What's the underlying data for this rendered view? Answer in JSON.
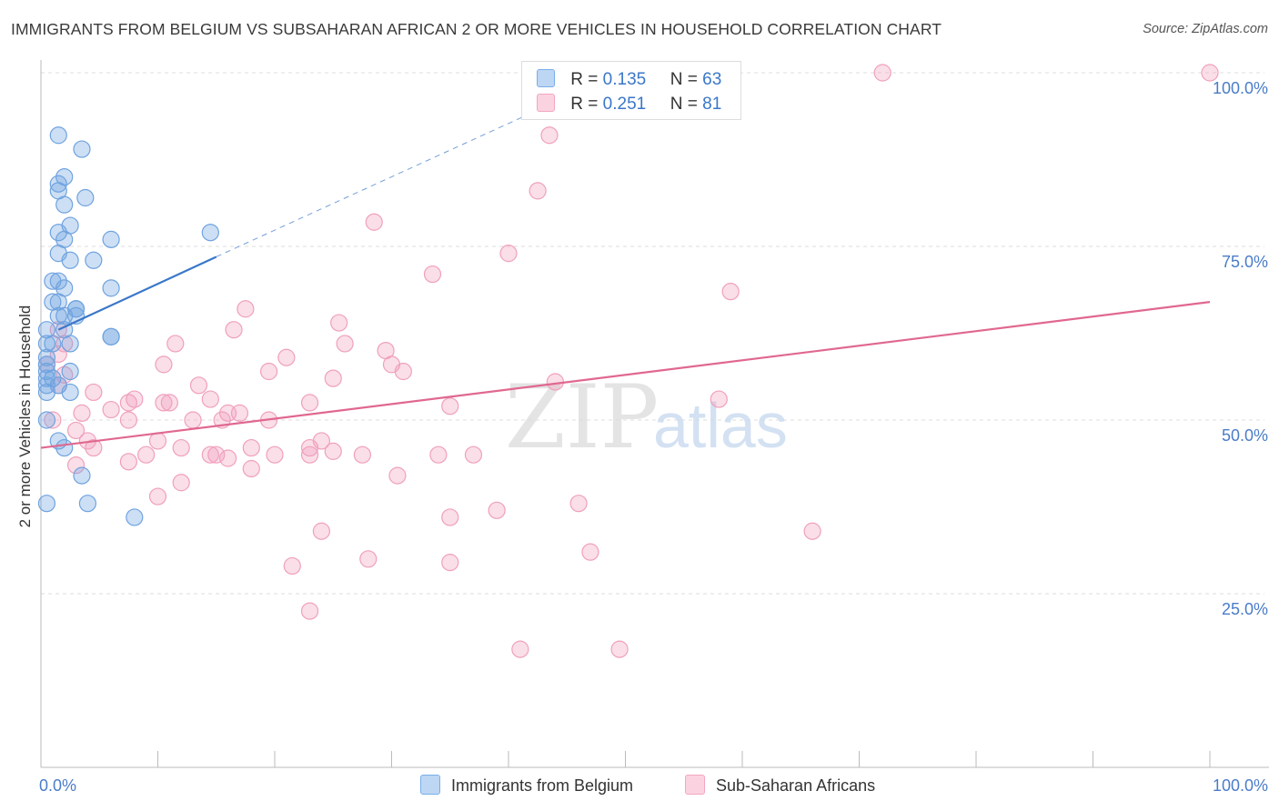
{
  "title": "IMMIGRANTS FROM BELGIUM VS SUBSAHARAN AFRICAN 2 OR MORE VEHICLES IN HOUSEHOLD CORRELATION CHART",
  "source": "Source: ZipAtlas.com",
  "watermark": {
    "zip": "ZIP",
    "atlas": "atlas"
  },
  "legend": {
    "r_label": "R =",
    "n_label": "N =",
    "rows": [
      {
        "r": "0.135",
        "n": "63",
        "color": "#7aaee8"
      },
      {
        "r": "0.251",
        "n": "81",
        "color": "#f3a6c0"
      }
    ]
  },
  "colors": {
    "blue": "#6fa3e0",
    "blue_line": "#3a77c9",
    "pink": "#f0a0bc",
    "pink_line": "#e0688f",
    "axis_text": "#4a7cc9"
  },
  "chart_data": {
    "type": "scatter",
    "xlabel": "",
    "ylabel": "2 or more Vehicles in Household",
    "xlim": [
      0,
      100
    ],
    "ylim": [
      0,
      100
    ],
    "x_tick_labels": [
      "0.0%",
      "100.0%"
    ],
    "y_tick_labels": [
      "25.0%",
      "50.0%",
      "75.0%",
      "100.0%"
    ],
    "y_ticks": [
      25,
      50,
      75,
      100
    ],
    "series": [
      {
        "name": "Immigrants from Belgium",
        "color": "#6fa3e0",
        "trend": {
          "x": [
            1.5,
            15
          ],
          "y": [
            63,
            73.5
          ],
          "dashed_to": [
            43,
            95
          ]
        },
        "points": [
          [
            1.5,
            91
          ],
          [
            3.5,
            89
          ],
          [
            2,
            85
          ],
          [
            1.5,
            84
          ],
          [
            1.5,
            83
          ],
          [
            3.8,
            82
          ],
          [
            2,
            81
          ],
          [
            2.5,
            78
          ],
          [
            1.5,
            77
          ],
          [
            6,
            76
          ],
          [
            2,
            76
          ],
          [
            14.5,
            77
          ],
          [
            1.5,
            74
          ],
          [
            2.5,
            73
          ],
          [
            4.5,
            73
          ],
          [
            1,
            70
          ],
          [
            1.5,
            70
          ],
          [
            2,
            69
          ],
          [
            6,
            69
          ],
          [
            1,
            67
          ],
          [
            1.5,
            67
          ],
          [
            3,
            66
          ],
          [
            3,
            66
          ],
          [
            1.5,
            65
          ],
          [
            2,
            65
          ],
          [
            3,
            65
          ],
          [
            0.5,
            63
          ],
          [
            2,
            63
          ],
          [
            6,
            62
          ],
          [
            6,
            62
          ],
          [
            2.5,
            61
          ],
          [
            0.5,
            61
          ],
          [
            1,
            61
          ],
          [
            0.5,
            59
          ],
          [
            0.5,
            58
          ],
          [
            0.5,
            57
          ],
          [
            2.5,
            57
          ],
          [
            0.5,
            56
          ],
          [
            1,
            56
          ],
          [
            0.5,
            55
          ],
          [
            1.5,
            55
          ],
          [
            2.5,
            54
          ],
          [
            0.5,
            54
          ],
          [
            0.5,
            50
          ],
          [
            2,
            46
          ],
          [
            1.5,
            47
          ],
          [
            3.5,
            42
          ],
          [
            0.5,
            38
          ],
          [
            4,
            38
          ],
          [
            8,
            36
          ]
        ]
      },
      {
        "name": "Sub-Saharan Africans",
        "color": "#f0a0bc",
        "trend": {
          "x": [
            0,
            100
          ],
          "y": [
            46,
            67
          ]
        },
        "points": [
          [
            72,
            100
          ],
          [
            100,
            100
          ],
          [
            43.5,
            91
          ],
          [
            42.5,
            83
          ],
          [
            28.5,
            78.5
          ],
          [
            40,
            74
          ],
          [
            33.5,
            71
          ],
          [
            59,
            68.5
          ],
          [
            17.5,
            66
          ],
          [
            25.5,
            64
          ],
          [
            16.5,
            63
          ],
          [
            1.5,
            63
          ],
          [
            2,
            61
          ],
          [
            11.5,
            61
          ],
          [
            26,
            61
          ],
          [
            29.5,
            60
          ],
          [
            1.5,
            59.5
          ],
          [
            0.5,
            58
          ],
          [
            10.5,
            58
          ],
          [
            21,
            59
          ],
          [
            30,
            58
          ],
          [
            31,
            57
          ],
          [
            19.5,
            57
          ],
          [
            25,
            56
          ],
          [
            2,
            56.5
          ],
          [
            44,
            55.5
          ],
          [
            13.5,
            55
          ],
          [
            1.5,
            55
          ],
          [
            14.5,
            53
          ],
          [
            4.5,
            54
          ],
          [
            7.5,
            52.5
          ],
          [
            8,
            53
          ],
          [
            3.5,
            51
          ],
          [
            6,
            51.5
          ],
          [
            16,
            51
          ],
          [
            11,
            52.5
          ],
          [
            10.5,
            52.5
          ],
          [
            17,
            51
          ],
          [
            23,
            52.5
          ],
          [
            35,
            52
          ],
          [
            58,
            53
          ],
          [
            1,
            50
          ],
          [
            7.5,
            50
          ],
          [
            13,
            50
          ],
          [
            15.5,
            50
          ],
          [
            19.5,
            50
          ],
          [
            3,
            48.5
          ],
          [
            4,
            47
          ],
          [
            10,
            47
          ],
          [
            4.5,
            46
          ],
          [
            12,
            46
          ],
          [
            18,
            46
          ],
          [
            14.5,
            45
          ],
          [
            24,
            47
          ],
          [
            23,
            46
          ],
          [
            9,
            45
          ],
          [
            23,
            45
          ],
          [
            25,
            45.5
          ],
          [
            16,
            44.5
          ],
          [
            15,
            45
          ],
          [
            20,
            45
          ],
          [
            27.5,
            45
          ],
          [
            34,
            45
          ],
          [
            37,
            45
          ],
          [
            7.5,
            44
          ],
          [
            3,
            43.5
          ],
          [
            18,
            43
          ],
          [
            12,
            41
          ],
          [
            30.5,
            42
          ],
          [
            10,
            39
          ],
          [
            46,
            38
          ],
          [
            39,
            37
          ],
          [
            35,
            36
          ],
          [
            24,
            34
          ],
          [
            66,
            34
          ],
          [
            47,
            31
          ],
          [
            28,
            30
          ],
          [
            35,
            29.5
          ],
          [
            21.5,
            29
          ],
          [
            23,
            22.5
          ],
          [
            41,
            17
          ],
          [
            49.5,
            17
          ]
        ]
      }
    ]
  }
}
